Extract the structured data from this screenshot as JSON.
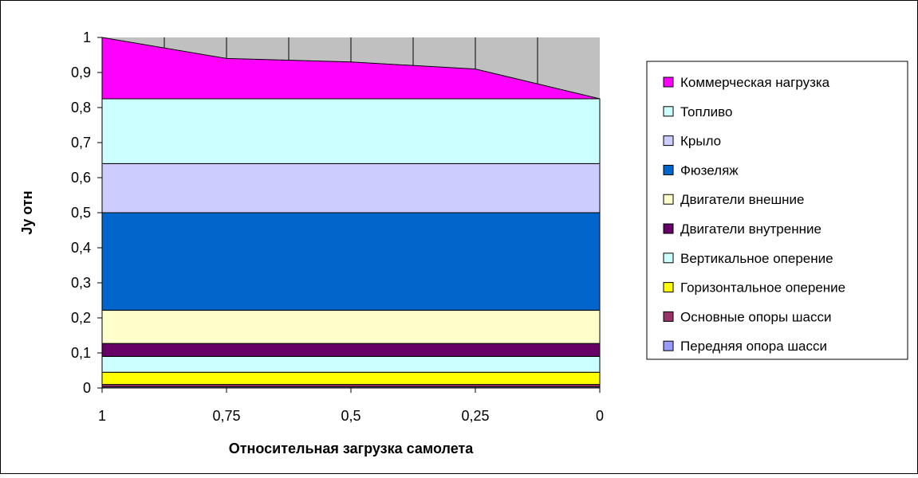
{
  "chart_data": {
    "type": "area",
    "stacked": true,
    "title": "",
    "xlabel": "Относительная загрузка самолета",
    "ylabel": "Jy отн",
    "x": [
      "1",
      "0,75",
      "0,5",
      "0,25",
      "0"
    ],
    "ylim": [
      0,
      1
    ],
    "yticks": [
      "0",
      "0,1",
      "0,2",
      "0,3",
      "0,4",
      "0,5",
      "0,6",
      "0,7",
      "0,8",
      "0,9",
      "1"
    ],
    "grid": true,
    "legend_position": "right",
    "plot_background": "#c0c0c0",
    "series": [
      {
        "name": "Передняя опора шасси",
        "color": "#9999ff",
        "values": [
          0.003,
          0.003,
          0.003,
          0.003,
          0.003
        ]
      },
      {
        "name": "Основные опоры шасси",
        "color": "#993366",
        "values": [
          0.007,
          0.007,
          0.007,
          0.007,
          0.007
        ]
      },
      {
        "name": "Горизонтальное оперение",
        "color": "#ffff00",
        "values": [
          0.035,
          0.035,
          0.035,
          0.035,
          0.035
        ]
      },
      {
        "name": "Вертикальное оперение",
        "color": "#ccffff",
        "values": [
          0.045,
          0.045,
          0.045,
          0.045,
          0.045
        ]
      },
      {
        "name": "Двигатели внутренние",
        "color": "#660066",
        "values": [
          0.037,
          0.037,
          0.037,
          0.037,
          0.037
        ]
      },
      {
        "name": "Двигатели внешние",
        "color": "#ffffcc",
        "values": [
          0.095,
          0.095,
          0.095,
          0.095,
          0.095
        ]
      },
      {
        "name": "Фюзеляж",
        "color": "#0066cc",
        "values": [
          0.278,
          0.278,
          0.278,
          0.278,
          0.278
        ]
      },
      {
        "name": "Крыло",
        "color": "#ccccff",
        "values": [
          0.14,
          0.14,
          0.14,
          0.14,
          0.14
        ]
      },
      {
        "name": "Топливо",
        "color": "#ccffff",
        "values": [
          0.185,
          0.185,
          0.185,
          0.185,
          0.185
        ]
      },
      {
        "name": "Коммерческая нагрузка",
        "color": "#ff00ff",
        "values": [
          0.175,
          0.115,
          0.105,
          0.085,
          0.0
        ]
      }
    ]
  }
}
